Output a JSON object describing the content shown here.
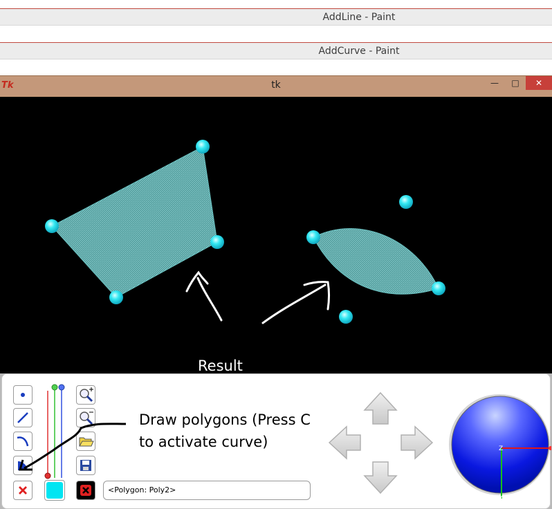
{
  "background_windows": [
    {
      "title": "AddLine - Paint"
    },
    {
      "title": "AddCurve - Paint"
    }
  ],
  "window": {
    "title": "tk",
    "logo_text": "Tk",
    "minimize_label": "—",
    "maximize_label": "□",
    "close_label": "✕"
  },
  "canvas": {
    "annotation": "Result",
    "polygon_color": "#5fa8a8",
    "vertex_color": "#33e5f0"
  },
  "toolbar": {
    "instructions_line1": "Draw polygons (Press C",
    "instructions_line2": "to activate curve)",
    "status_value": "<Polygon: Poly2>",
    "current_color": "#00e5f2",
    "icons": [
      "point-icon",
      "line-icon",
      "curve-icon",
      "polygon-icon",
      "delete-icon",
      "zoom-in-icon",
      "zoom-out-icon",
      "open-folder-icon",
      "save-icon",
      "clear-icon"
    ]
  },
  "navigation": {
    "arrows": [
      "up",
      "down",
      "left",
      "right"
    ]
  },
  "orientation_sphere": {
    "axis_z_label": "Z",
    "axis_y_label": "Y"
  }
}
